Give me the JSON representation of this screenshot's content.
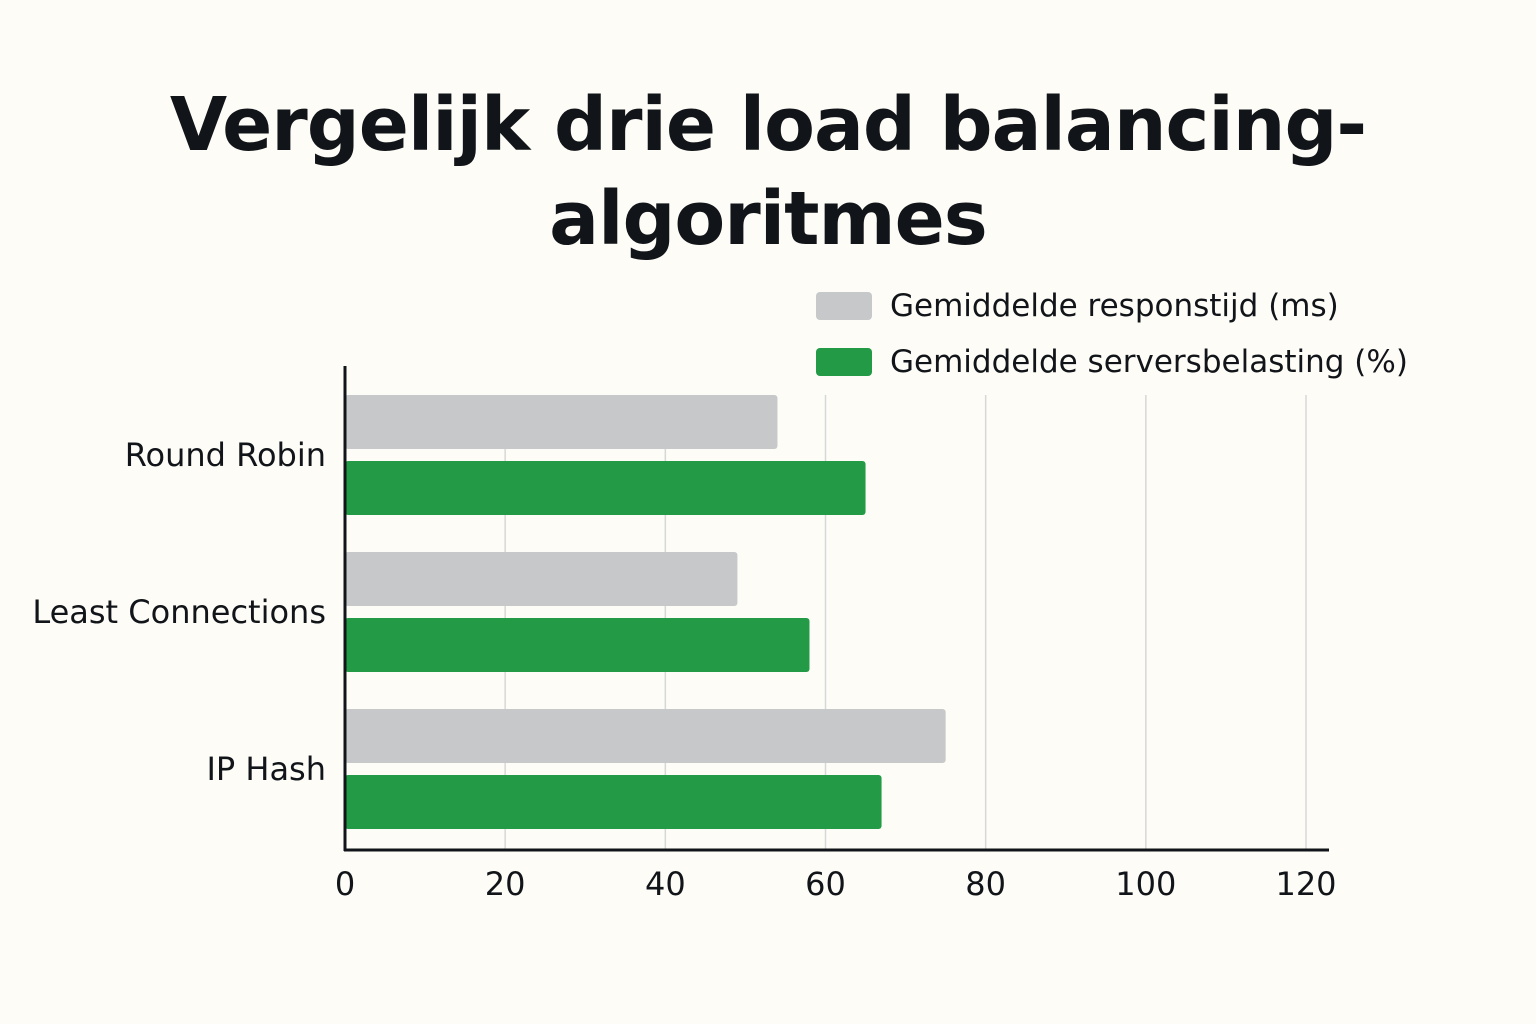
{
  "chart_data": {
    "type": "bar",
    "orientation": "horizontal",
    "title": "Vergelijk drie load balancing-algoritmes",
    "categories": [
      "Round Robin",
      "Least Connections",
      "IP Hash"
    ],
    "series": [
      {
        "name": "Gemiddelde responstijd (ms)",
        "color": "#c6c8ca",
        "values": [
          54,
          49,
          75
        ]
      },
      {
        "name": "Gemiddelde serversbelasting (%)",
        "color": "#229a46",
        "values": [
          65,
          58,
          67
        ]
      }
    ],
    "xlim": [
      0,
      120
    ],
    "xticks": [
      "0",
      "20",
      "40",
      "60",
      "80",
      "100",
      "120"
    ],
    "grid": true,
    "legend_position": "top-right"
  }
}
